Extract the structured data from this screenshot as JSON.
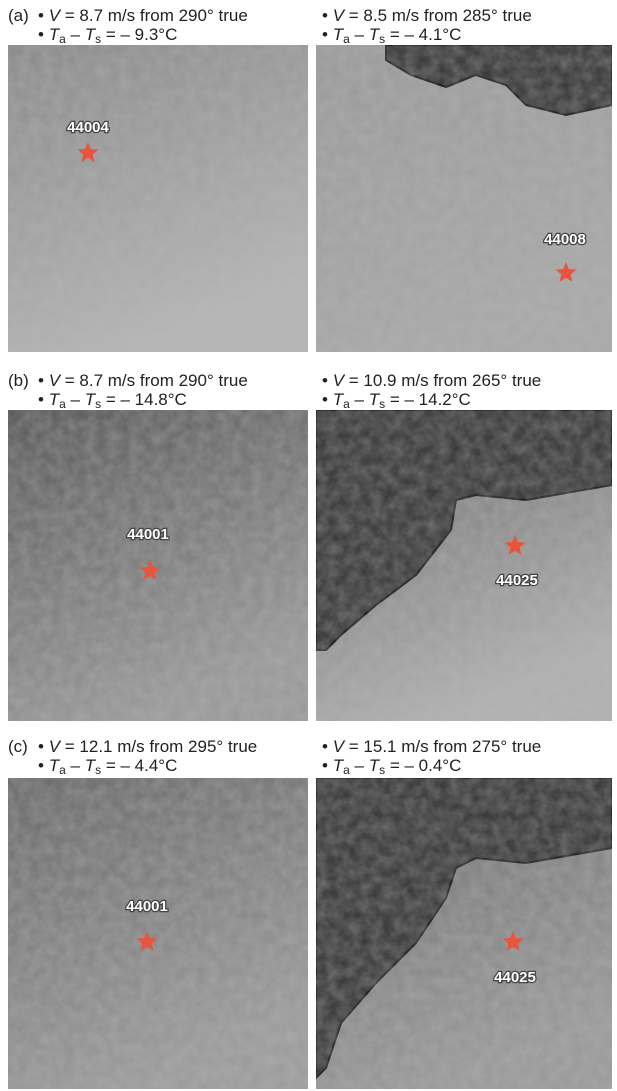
{
  "bullet": "•",
  "panels": [
    {
      "label": "(a)",
      "images": [
        {
          "wind": {
            "symbol": "V",
            "text": "= 8.7 m/s from 290° true"
          },
          "temp": {
            "symbol_a": "T",
            "sub_a": "a",
            "dash": "–",
            "symbol_s": "T",
            "sub_s": "s",
            "text": "= – 9.3°C"
          },
          "station": "44004"
        },
        {
          "wind": {
            "symbol": "V",
            "text": "= 8.5 m/s from 285° true"
          },
          "temp": {
            "symbol_a": "T",
            "sub_a": "a",
            "dash": "–",
            "symbol_s": "T",
            "sub_s": "s",
            "text": "= – 4.1°C"
          },
          "station": "44008"
        }
      ]
    },
    {
      "label": "(b)",
      "images": [
        {
          "wind": {
            "symbol": "V",
            "text": "= 8.7 m/s from 290° true"
          },
          "temp": {
            "symbol_a": "T",
            "sub_a": "a",
            "dash": "–",
            "symbol_s": "T",
            "sub_s": "s",
            "text": "= – 14.8°C"
          },
          "station": "44001"
        },
        {
          "wind": {
            "symbol": "V",
            "text": "= 10.9 m/s from 265° true"
          },
          "temp": {
            "symbol_a": "T",
            "sub_a": "a",
            "dash": "–",
            "symbol_s": "T",
            "sub_s": "s",
            "text": "= – 14.2°C"
          },
          "station": "44025"
        }
      ]
    },
    {
      "label": "(c)",
      "images": [
        {
          "wind": {
            "symbol": "V",
            "text": "= 12.1 m/s from 295° true"
          },
          "temp": {
            "symbol_a": "T",
            "sub_a": "a",
            "dash": "–",
            "symbol_s": "T",
            "sub_s": "s",
            "text": "= – 4.4°C"
          },
          "station": "44001"
        },
        {
          "wind": {
            "symbol": "V",
            "text": "= 15.1 m/s from 275° true"
          },
          "temp": {
            "symbol_a": "T",
            "sub_a": "a",
            "dash": "–",
            "symbol_s": "T",
            "sub_s": "s",
            "text": "= – 0.4°C"
          },
          "station": "44025"
        }
      ]
    }
  ]
}
